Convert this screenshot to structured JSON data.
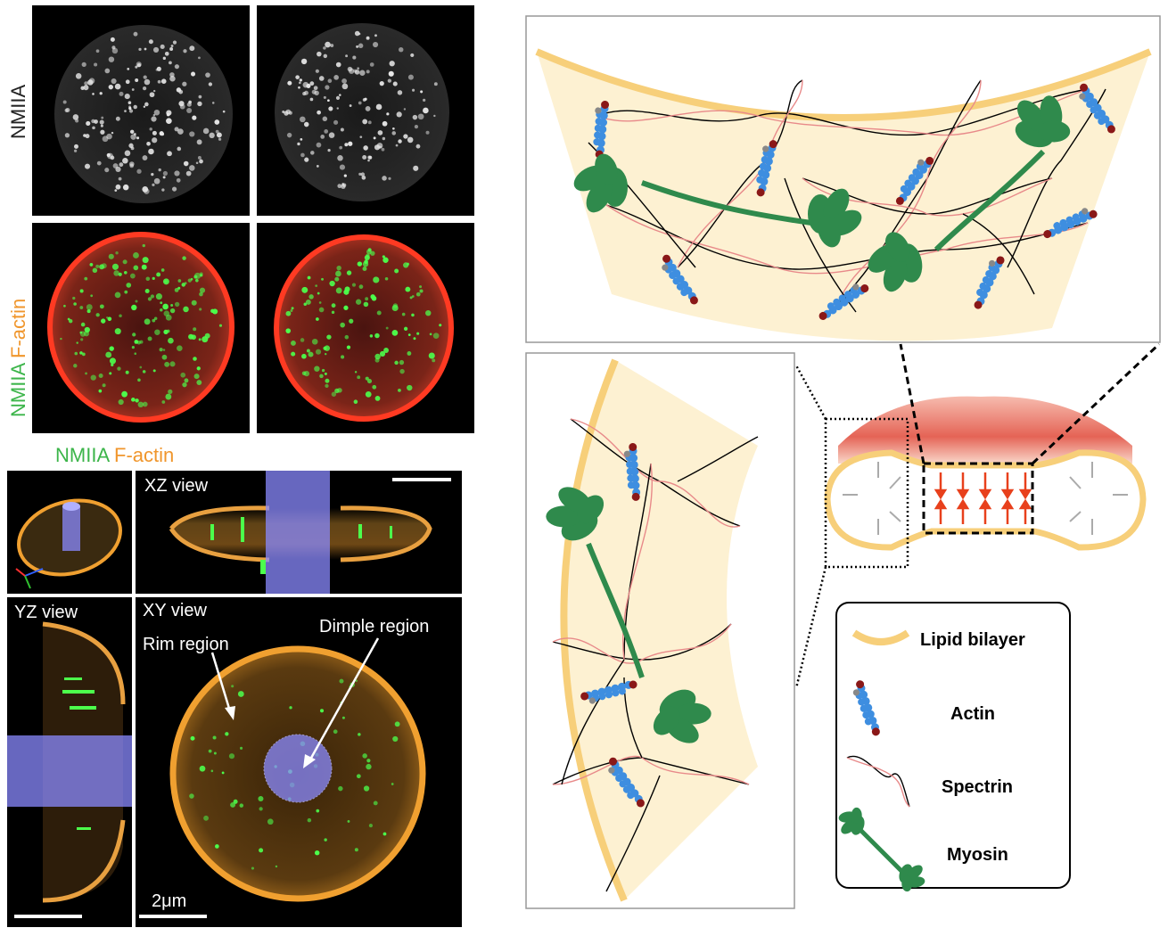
{
  "labels": {
    "nmiia": "NMIIA",
    "factin": "F-actin",
    "xz_view": "XZ view",
    "yz_view": "YZ view",
    "xy_view": "XY view",
    "rim_region": "Rim region",
    "dimple_region": "Dimple region",
    "scale_bar": "2μm"
  },
  "legend": {
    "lipid": "Lipid bilayer",
    "actin": "Actin",
    "spectrin": "Spectrin",
    "myosin": "Myosin"
  },
  "colors": {
    "nmiia_green": "#3cb54a",
    "factin_orange": "#f0962c",
    "lipid": "#f7cf7a",
    "cytoplasm": "#fdf1d2",
    "actin_blue": "#3e8ee0",
    "myosin_green": "#2f8a4c",
    "spectrin_pink": "#e88a8a",
    "force_red": "#e8401c",
    "dimple_blue": "#8080ff"
  }
}
